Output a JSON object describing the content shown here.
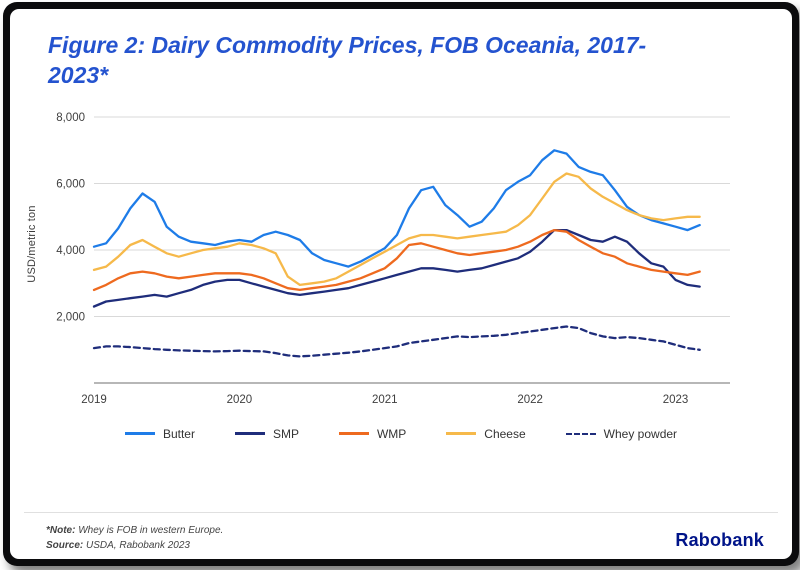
{
  "colors": {
    "title": "#2453cf",
    "logo": "#001489",
    "grid": "#d9d9d9",
    "axis": "#8c8c8c",
    "tick_text": "#404040"
  },
  "footer": {
    "note_label": "*Note:",
    "note_text": " Whey is FOB in western Europe.",
    "source_label": "Source:",
    "source_text": " USDA, Rabobank 2023",
    "logo": "Rabobank"
  },
  "chart_data": {
    "type": "line",
    "title": "Figure 2: Dairy Commodity Prices, FOB Oceania, 2017-2023*",
    "xlabel": "",
    "ylabel": "USD/metric ton",
    "ylim": [
      0,
      8000
    ],
    "yticks": [
      2000,
      4000,
      6000,
      8000
    ],
    "ytick_labels": [
      "2,000",
      "4,000",
      "6,000",
      "8,000"
    ],
    "xticks": [
      2019,
      2020,
      2021,
      2022,
      2023
    ],
    "x_start_year": 2019,
    "x_interval": "monthly",
    "grid": true,
    "legend_position": "bottom",
    "series": [
      {
        "name": "Butter",
        "color": "#1e7ce8",
        "dash": false,
        "values": [
          4100,
          4200,
          4650,
          5250,
          5700,
          5450,
          4700,
          4400,
          4250,
          4200,
          4150,
          4250,
          4300,
          4250,
          4450,
          4550,
          4450,
          4300,
          3900,
          3700,
          3600,
          3500,
          3650,
          3850,
          4050,
          4450,
          5250,
          5800,
          5900,
          5350,
          5050,
          4700,
          4850,
          5250,
          5800,
          6050,
          6250,
          6700,
          7000,
          6900,
          6500,
          6350,
          6250,
          5800,
          5300,
          5050,
          4900,
          4800,
          4700,
          4600,
          4750
        ]
      },
      {
        "name": "SMP",
        "color": "#1f2d7b",
        "dash": false,
        "values": [
          2300,
          2450,
          2500,
          2550,
          2600,
          2650,
          2600,
          2700,
          2800,
          2950,
          3050,
          3100,
          3100,
          3000,
          2900,
          2800,
          2700,
          2650,
          2700,
          2750,
          2800,
          2850,
          2950,
          3050,
          3150,
          3250,
          3350,
          3450,
          3450,
          3400,
          3350,
          3400,
          3450,
          3550,
          3650,
          3750,
          3950,
          4250,
          4600,
          4600,
          4450,
          4300,
          4250,
          4400,
          4250,
          3900,
          3600,
          3500,
          3100,
          2950,
          2900
        ]
      },
      {
        "name": "WMP",
        "color": "#ee6a1f",
        "dash": false,
        "values": [
          2800,
          2950,
          3150,
          3300,
          3350,
          3300,
          3200,
          3150,
          3200,
          3250,
          3300,
          3300,
          3300,
          3250,
          3150,
          3000,
          2850,
          2800,
          2850,
          2900,
          2950,
          3050,
          3150,
          3300,
          3450,
          3750,
          4150,
          4200,
          4100,
          4000,
          3900,
          3850,
          3900,
          3950,
          4000,
          4100,
          4250,
          4450,
          4600,
          4550,
          4300,
          4100,
          3900,
          3800,
          3600,
          3500,
          3400,
          3350,
          3300,
          3250,
          3350
        ]
      },
      {
        "name": "Cheese",
        "color": "#f6b94a",
        "dash": false,
        "values": [
          3400,
          3500,
          3800,
          4150,
          4300,
          4100,
          3900,
          3800,
          3900,
          4000,
          4050,
          4100,
          4200,
          4150,
          4050,
          3900,
          3200,
          2950,
          3000,
          3050,
          3150,
          3350,
          3550,
          3750,
          3950,
          4150,
          4350,
          4450,
          4450,
          4400,
          4350,
          4400,
          4450,
          4500,
          4550,
          4750,
          5050,
          5550,
          6050,
          6300,
          6200,
          5850,
          5600,
          5400,
          5200,
          5050,
          4950,
          4900,
          4950,
          5000,
          5000
        ]
      },
      {
        "name": "Whey powder",
        "color": "#1f2d7b",
        "dash": true,
        "values": [
          1050,
          1100,
          1100,
          1080,
          1050,
          1020,
          1000,
          980,
          970,
          960,
          950,
          960,
          970,
          960,
          950,
          900,
          830,
          800,
          820,
          850,
          880,
          910,
          950,
          1000,
          1050,
          1100,
          1200,
          1250,
          1300,
          1350,
          1400,
          1380,
          1400,
          1420,
          1450,
          1500,
          1550,
          1600,
          1650,
          1700,
          1650,
          1500,
          1400,
          1350,
          1380,
          1350,
          1300,
          1250,
          1150,
          1050,
          1000
        ]
      }
    ]
  }
}
